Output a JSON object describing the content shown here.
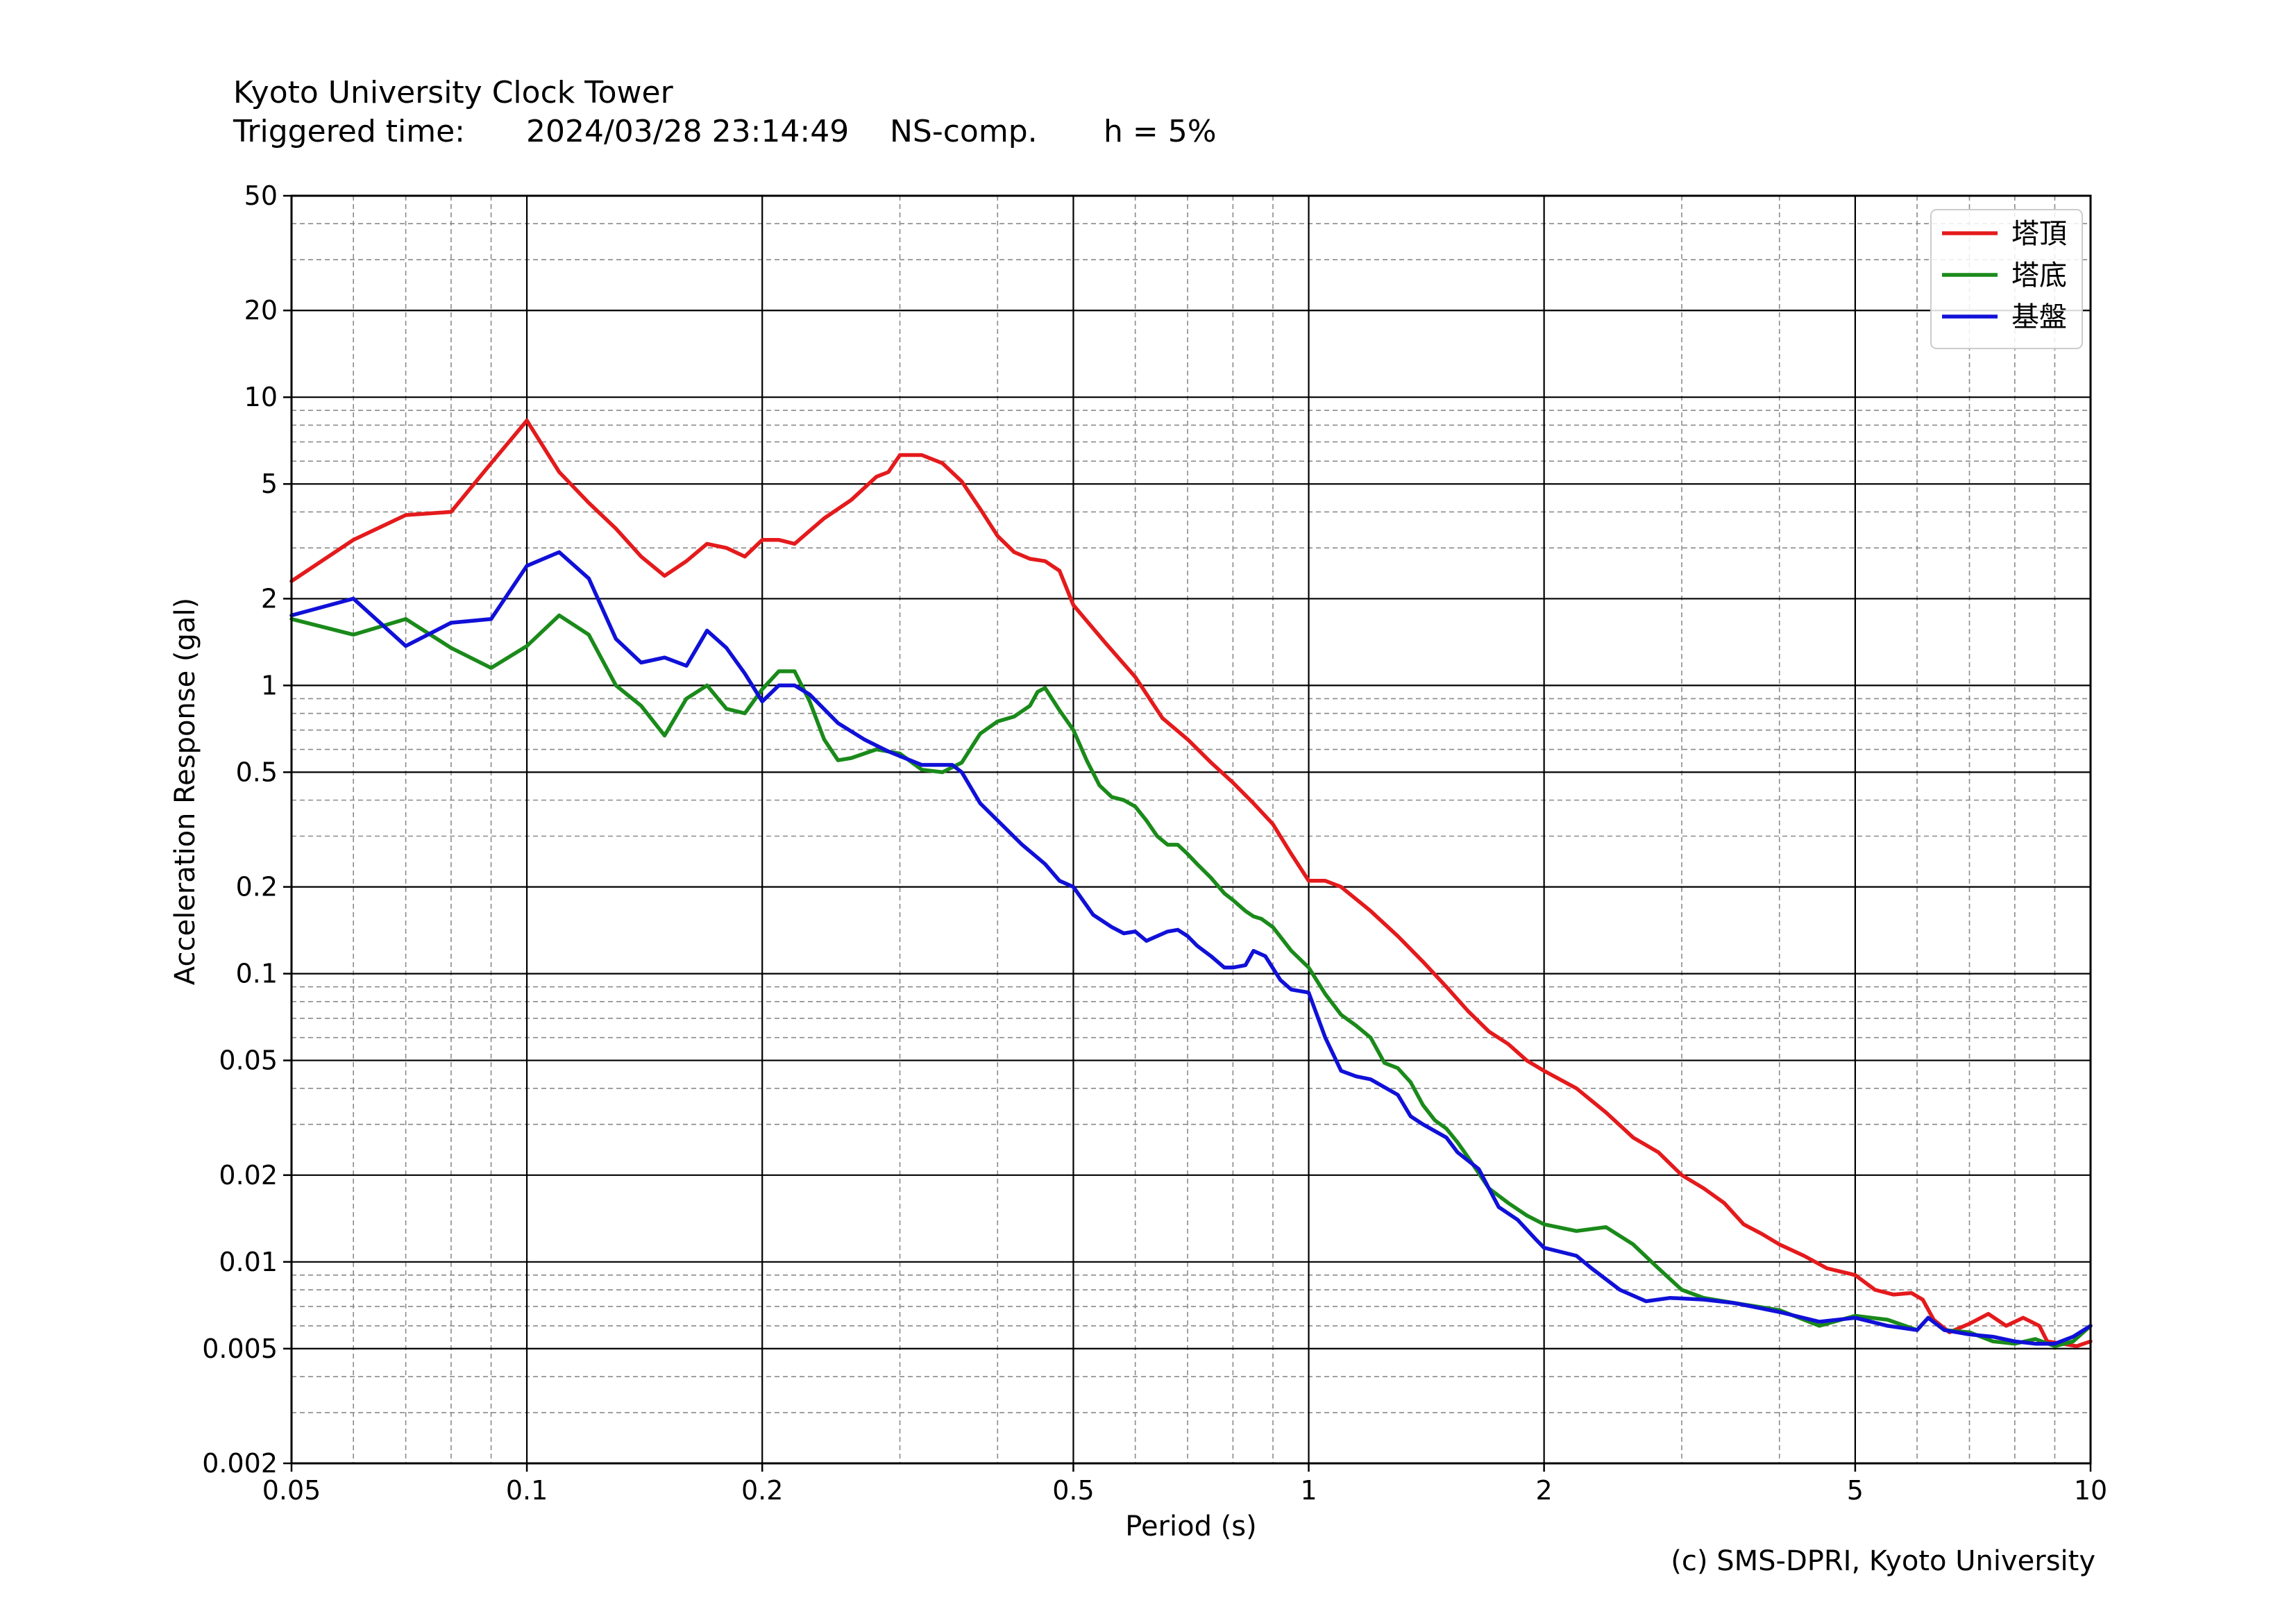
{
  "header": {
    "title": "Kyoto University Clock Tower",
    "triggered_label": "Triggered time:",
    "triggered_time": "2024/03/28 23:14:49",
    "component": "NS-comp.",
    "damping": "h = 5%"
  },
  "credit": "(c) SMS-DPRI, Kyoto University",
  "chart_data": {
    "type": "line",
    "xlabel": "Period (s)",
    "ylabel": "Acceleration Response (gal)",
    "xscale": "log",
    "yscale": "log",
    "xlim": [
      0.05,
      10
    ],
    "ylim": [
      0.002,
      50
    ],
    "grid": true,
    "legend_position": "top-right",
    "xticks": [
      {
        "value": 0.05,
        "label": "0.05"
      },
      {
        "value": 0.1,
        "label": "0.1"
      },
      {
        "value": 0.2,
        "label": "0.2"
      },
      {
        "value": 0.5,
        "label": "0.5"
      },
      {
        "value": 1,
        "label": "1"
      },
      {
        "value": 2,
        "label": "2"
      },
      {
        "value": 5,
        "label": "5"
      },
      {
        "value": 10,
        "label": "10"
      }
    ],
    "yticks": [
      {
        "value": 0.002,
        "label": "0.002"
      },
      {
        "value": 0.005,
        "label": "0.005"
      },
      {
        "value": 0.01,
        "label": "0.01"
      },
      {
        "value": 0.02,
        "label": "0.02"
      },
      {
        "value": 0.05,
        "label": "0.05"
      },
      {
        "value": 0.1,
        "label": "0.1"
      },
      {
        "value": 0.2,
        "label": "0.2"
      },
      {
        "value": 0.5,
        "label": "0.5"
      },
      {
        "value": 1,
        "label": "1"
      },
      {
        "value": 2,
        "label": "2"
      },
      {
        "value": 5,
        "label": "5"
      },
      {
        "value": 10,
        "label": "10"
      },
      {
        "value": 20,
        "label": "20"
      },
      {
        "value": 50,
        "label": "50"
      }
    ],
    "series": [
      {
        "name": "塔頂",
        "color": "#e41a1c",
        "points": [
          [
            0.05,
            2.3
          ],
          [
            0.06,
            3.2
          ],
          [
            0.07,
            3.9
          ],
          [
            0.08,
            4.0
          ],
          [
            0.09,
            5.9
          ],
          [
            0.1,
            8.3
          ],
          [
            0.11,
            5.5
          ],
          [
            0.12,
            4.3
          ],
          [
            0.13,
            3.5
          ],
          [
            0.14,
            2.8
          ],
          [
            0.15,
            2.4
          ],
          [
            0.16,
            2.7
          ],
          [
            0.17,
            3.1
          ],
          [
            0.18,
            3.0
          ],
          [
            0.19,
            2.8
          ],
          [
            0.2,
            3.2
          ],
          [
            0.21,
            3.2
          ],
          [
            0.22,
            3.1
          ],
          [
            0.24,
            3.8
          ],
          [
            0.26,
            4.4
          ],
          [
            0.28,
            5.3
          ],
          [
            0.29,
            5.5
          ],
          [
            0.3,
            6.3
          ],
          [
            0.32,
            6.3
          ],
          [
            0.34,
            5.9
          ],
          [
            0.36,
            5.1
          ],
          [
            0.38,
            4.1
          ],
          [
            0.4,
            3.3
          ],
          [
            0.42,
            2.9
          ],
          [
            0.44,
            2.75
          ],
          [
            0.46,
            2.7
          ],
          [
            0.48,
            2.5
          ],
          [
            0.5,
            1.9
          ],
          [
            0.55,
            1.4
          ],
          [
            0.6,
            1.07
          ],
          [
            0.65,
            0.77
          ],
          [
            0.7,
            0.65
          ],
          [
            0.75,
            0.54
          ],
          [
            0.8,
            0.46
          ],
          [
            0.85,
            0.39
          ],
          [
            0.9,
            0.33
          ],
          [
            0.95,
            0.26
          ],
          [
            1.0,
            0.21
          ],
          [
            1.05,
            0.21
          ],
          [
            1.1,
            0.2
          ],
          [
            1.2,
            0.165
          ],
          [
            1.3,
            0.135
          ],
          [
            1.4,
            0.11
          ],
          [
            1.5,
            0.09
          ],
          [
            1.6,
            0.074
          ],
          [
            1.7,
            0.063
          ],
          [
            1.8,
            0.057
          ],
          [
            1.9,
            0.05
          ],
          [
            2.0,
            0.046
          ],
          [
            2.2,
            0.04
          ],
          [
            2.4,
            0.033
          ],
          [
            2.6,
            0.027
          ],
          [
            2.8,
            0.024
          ],
          [
            3.0,
            0.02
          ],
          [
            3.2,
            0.018
          ],
          [
            3.4,
            0.016
          ],
          [
            3.6,
            0.0135
          ],
          [
            3.8,
            0.0125
          ],
          [
            4.0,
            0.0115
          ],
          [
            4.3,
            0.0105
          ],
          [
            4.6,
            0.0095
          ],
          [
            5.0,
            0.009
          ],
          [
            5.3,
            0.008
          ],
          [
            5.6,
            0.0077
          ],
          [
            5.9,
            0.0078
          ],
          [
            6.1,
            0.0074
          ],
          [
            6.3,
            0.0063
          ],
          [
            6.6,
            0.0057
          ],
          [
            7.0,
            0.0061
          ],
          [
            7.4,
            0.0066
          ],
          [
            7.8,
            0.006
          ],
          [
            8.2,
            0.0064
          ],
          [
            8.6,
            0.006
          ],
          [
            8.8,
            0.0053
          ],
          [
            9.2,
            0.0052
          ],
          [
            9.6,
            0.0051
          ],
          [
            10.0,
            0.0053
          ]
        ]
      },
      {
        "name": "塔底",
        "color": "#1a8a1a",
        "points": [
          [
            0.05,
            1.7
          ],
          [
            0.06,
            1.5
          ],
          [
            0.07,
            1.7
          ],
          [
            0.08,
            1.35
          ],
          [
            0.09,
            1.15
          ],
          [
            0.1,
            1.37
          ],
          [
            0.11,
            1.75
          ],
          [
            0.12,
            1.5
          ],
          [
            0.13,
            1.0
          ],
          [
            0.14,
            0.85
          ],
          [
            0.15,
            0.67
          ],
          [
            0.16,
            0.9
          ],
          [
            0.17,
            1.0
          ],
          [
            0.18,
            0.83
          ],
          [
            0.19,
            0.8
          ],
          [
            0.2,
            0.97
          ],
          [
            0.21,
            1.12
          ],
          [
            0.22,
            1.12
          ],
          [
            0.23,
            0.88
          ],
          [
            0.24,
            0.65
          ],
          [
            0.25,
            0.55
          ],
          [
            0.26,
            0.56
          ],
          [
            0.28,
            0.6
          ],
          [
            0.3,
            0.58
          ],
          [
            0.32,
            0.51
          ],
          [
            0.34,
            0.5
          ],
          [
            0.36,
            0.54
          ],
          [
            0.38,
            0.68
          ],
          [
            0.4,
            0.75
          ],
          [
            0.42,
            0.78
          ],
          [
            0.44,
            0.85
          ],
          [
            0.45,
            0.95
          ],
          [
            0.46,
            0.98
          ],
          [
            0.48,
            0.82
          ],
          [
            0.5,
            0.7
          ],
          [
            0.52,
            0.55
          ],
          [
            0.54,
            0.45
          ],
          [
            0.56,
            0.41
          ],
          [
            0.58,
            0.4
          ],
          [
            0.6,
            0.38
          ],
          [
            0.62,
            0.34
          ],
          [
            0.64,
            0.3
          ],
          [
            0.66,
            0.28
          ],
          [
            0.68,
            0.28
          ],
          [
            0.7,
            0.26
          ],
          [
            0.72,
            0.24
          ],
          [
            0.75,
            0.215
          ],
          [
            0.78,
            0.19
          ],
          [
            0.8,
            0.18
          ],
          [
            0.83,
            0.165
          ],
          [
            0.85,
            0.158
          ],
          [
            0.87,
            0.155
          ],
          [
            0.9,
            0.145
          ],
          [
            0.95,
            0.12
          ],
          [
            1.0,
            0.105
          ],
          [
            1.05,
            0.085
          ],
          [
            1.1,
            0.072
          ],
          [
            1.15,
            0.066
          ],
          [
            1.2,
            0.06
          ],
          [
            1.25,
            0.049
          ],
          [
            1.3,
            0.047
          ],
          [
            1.35,
            0.042
          ],
          [
            1.4,
            0.035
          ],
          [
            1.45,
            0.031
          ],
          [
            1.5,
            0.029
          ],
          [
            1.55,
            0.026
          ],
          [
            1.6,
            0.023
          ],
          [
            1.7,
            0.018
          ],
          [
            1.8,
            0.016
          ],
          [
            1.9,
            0.0145
          ],
          [
            2.0,
            0.0135
          ],
          [
            2.2,
            0.0128
          ],
          [
            2.4,
            0.0132
          ],
          [
            2.6,
            0.0115
          ],
          [
            2.8,
            0.0095
          ],
          [
            3.0,
            0.008
          ],
          [
            3.2,
            0.0075
          ],
          [
            3.5,
            0.0072
          ],
          [
            4.0,
            0.0068
          ],
          [
            4.5,
            0.006
          ],
          [
            5.0,
            0.0065
          ],
          [
            5.5,
            0.0063
          ],
          [
            6.0,
            0.0058
          ],
          [
            6.2,
            0.0064
          ],
          [
            6.5,
            0.0058
          ],
          [
            7.0,
            0.0057
          ],
          [
            7.5,
            0.0053
          ],
          [
            8.0,
            0.0052
          ],
          [
            8.5,
            0.0054
          ],
          [
            9.0,
            0.0051
          ],
          [
            9.5,
            0.0053
          ],
          [
            10.0,
            0.006
          ]
        ]
      },
      {
        "name": "基盤",
        "color": "#1010d8",
        "points": [
          [
            0.05,
            1.75
          ],
          [
            0.06,
            2.0
          ],
          [
            0.07,
            1.37
          ],
          [
            0.08,
            1.65
          ],
          [
            0.09,
            1.7
          ],
          [
            0.1,
            2.6
          ],
          [
            0.11,
            2.9
          ],
          [
            0.12,
            2.35
          ],
          [
            0.13,
            1.45
          ],
          [
            0.14,
            1.2
          ],
          [
            0.15,
            1.25
          ],
          [
            0.16,
            1.17
          ],
          [
            0.17,
            1.55
          ],
          [
            0.18,
            1.35
          ],
          [
            0.19,
            1.1
          ],
          [
            0.2,
            0.88
          ],
          [
            0.21,
            1.0
          ],
          [
            0.22,
            1.0
          ],
          [
            0.23,
            0.93
          ],
          [
            0.25,
            0.74
          ],
          [
            0.27,
            0.65
          ],
          [
            0.29,
            0.59
          ],
          [
            0.32,
            0.53
          ],
          [
            0.35,
            0.53
          ],
          [
            0.36,
            0.5
          ],
          [
            0.38,
            0.39
          ],
          [
            0.4,
            0.34
          ],
          [
            0.43,
            0.28
          ],
          [
            0.46,
            0.24
          ],
          [
            0.48,
            0.21
          ],
          [
            0.5,
            0.2
          ],
          [
            0.53,
            0.16
          ],
          [
            0.56,
            0.145
          ],
          [
            0.58,
            0.138
          ],
          [
            0.6,
            0.14
          ],
          [
            0.62,
            0.13
          ],
          [
            0.64,
            0.135
          ],
          [
            0.66,
            0.14
          ],
          [
            0.68,
            0.142
          ],
          [
            0.7,
            0.135
          ],
          [
            0.72,
            0.125
          ],
          [
            0.75,
            0.115
          ],
          [
            0.78,
            0.105
          ],
          [
            0.8,
            0.105
          ],
          [
            0.83,
            0.107
          ],
          [
            0.85,
            0.12
          ],
          [
            0.88,
            0.115
          ],
          [
            0.92,
            0.095
          ],
          [
            0.95,
            0.088
          ],
          [
            1.0,
            0.086
          ],
          [
            1.05,
            0.06
          ],
          [
            1.1,
            0.046
          ],
          [
            1.15,
            0.044
          ],
          [
            1.2,
            0.043
          ],
          [
            1.3,
            0.038
          ],
          [
            1.35,
            0.032
          ],
          [
            1.4,
            0.03
          ],
          [
            1.5,
            0.027
          ],
          [
            1.55,
            0.024
          ],
          [
            1.65,
            0.021
          ],
          [
            1.75,
            0.0155
          ],
          [
            1.85,
            0.014
          ],
          [
            1.95,
            0.012
          ],
          [
            2.0,
            0.0112
          ],
          [
            2.2,
            0.0105
          ],
          [
            2.3,
            0.0095
          ],
          [
            2.5,
            0.008
          ],
          [
            2.7,
            0.0073
          ],
          [
            2.9,
            0.0075
          ],
          [
            3.2,
            0.0074
          ],
          [
            3.5,
            0.0072
          ],
          [
            4.0,
            0.0067
          ],
          [
            4.5,
            0.0062
          ],
          [
            5.0,
            0.0064
          ],
          [
            5.5,
            0.006
          ],
          [
            6.0,
            0.0058
          ],
          [
            6.2,
            0.0064
          ],
          [
            6.5,
            0.0058
          ],
          [
            7.0,
            0.0056
          ],
          [
            7.5,
            0.0055
          ],
          [
            8.0,
            0.0053
          ],
          [
            8.5,
            0.0052
          ],
          [
            9.0,
            0.0052
          ],
          [
            9.5,
            0.0055
          ],
          [
            10.0,
            0.006
          ]
        ]
      }
    ]
  }
}
